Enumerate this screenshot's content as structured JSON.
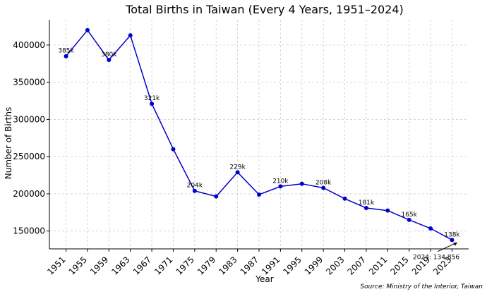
{
  "chart_data": {
    "type": "line",
    "title": "Total Births in Taiwan (Every 4 Years, 1951–2024)",
    "xlabel": "Year",
    "ylabel": "Number of Births",
    "source": "Source: Ministry of the Interior, Taiwan",
    "x": [
      1951,
      1955,
      1959,
      1963,
      1967,
      1971,
      1975,
      1979,
      1983,
      1987,
      1991,
      1995,
      1999,
      2003,
      2007,
      2011,
      2015,
      2019,
      2023
    ],
    "y": [
      385000,
      420000,
      380000,
      413000,
      321000,
      260000,
      204000,
      196500,
      229000,
      199000,
      210000,
      213500,
      208000,
      193500,
      181000,
      177500,
      165000,
      153500,
      138000
    ],
    "xlim": [
      1947.9,
      2026.1
    ],
    "ylim": [
      126000,
      434000
    ],
    "yticks": [
      150000,
      200000,
      250000,
      300000,
      350000,
      400000
    ],
    "grid": true,
    "color": "#0000cc",
    "data_labels": [
      {
        "x": 1951,
        "y": 385000,
        "text": "385k"
      },
      {
        "x": 1959,
        "y": 380000,
        "text": "380k"
      },
      {
        "x": 1967,
        "y": 321000,
        "text": "321k"
      },
      {
        "x": 1975,
        "y": 204000,
        "text": "204k"
      },
      {
        "x": 1983,
        "y": 229000,
        "text": "229k"
      },
      {
        "x": 1991,
        "y": 210000,
        "text": "210k"
      },
      {
        "x": 1999,
        "y": 208000,
        "text": "208k"
      },
      {
        "x": 2007,
        "y": 181000,
        "text": "181k"
      },
      {
        "x": 2015,
        "y": 165000,
        "text": "165k"
      },
      {
        "x": 2023,
        "y": 138000,
        "text": "138k"
      }
    ],
    "annotation": {
      "text": "2024: 134,856",
      "x": 2024,
      "y": 134856
    }
  }
}
